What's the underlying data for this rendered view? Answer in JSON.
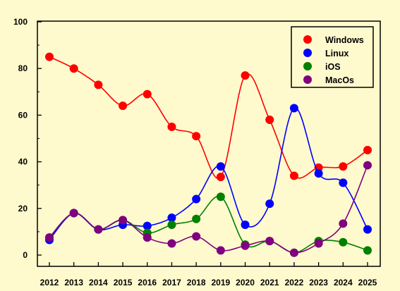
{
  "chart_data": {
    "type": "line",
    "x": [
      "2012",
      "2013",
      "2014",
      "2015",
      "2016",
      "2017",
      "2018",
      "2019",
      "2020",
      "2021",
      "2022",
      "2023",
      "2024",
      "2025"
    ],
    "ylim": [
      0,
      100
    ],
    "y_ticks": [
      "0",
      "20",
      "40",
      "60",
      "80",
      "100"
    ],
    "smooth": true,
    "legend_position": "top-right",
    "grid": false,
    "series": [
      {
        "name": "Windows",
        "color": "#ff0000",
        "values": [
          85,
          80,
          73,
          64,
          69,
          55,
          51,
          33.5,
          77,
          58,
          34,
          37.5,
          38,
          45
        ]
      },
      {
        "name": "Linux",
        "color": "#0000ff",
        "values": [
          6.5,
          18,
          11,
          13,
          12.5,
          16,
          24,
          38,
          13,
          22,
          63,
          35,
          31,
          11
        ]
      },
      {
        "name": "iOS",
        "color": "#008000",
        "values": [
          7.5,
          18,
          11,
          15,
          9.5,
          13,
          15.5,
          25,
          4.5,
          6,
          1,
          6,
          5.5,
          2
        ]
      },
      {
        "name": "MacOs",
        "color": "#800080",
        "values": [
          7.5,
          18,
          11,
          15,
          7.5,
          5,
          8,
          2,
          4,
          6,
          1,
          5,
          13.5,
          38.5
        ]
      }
    ]
  }
}
